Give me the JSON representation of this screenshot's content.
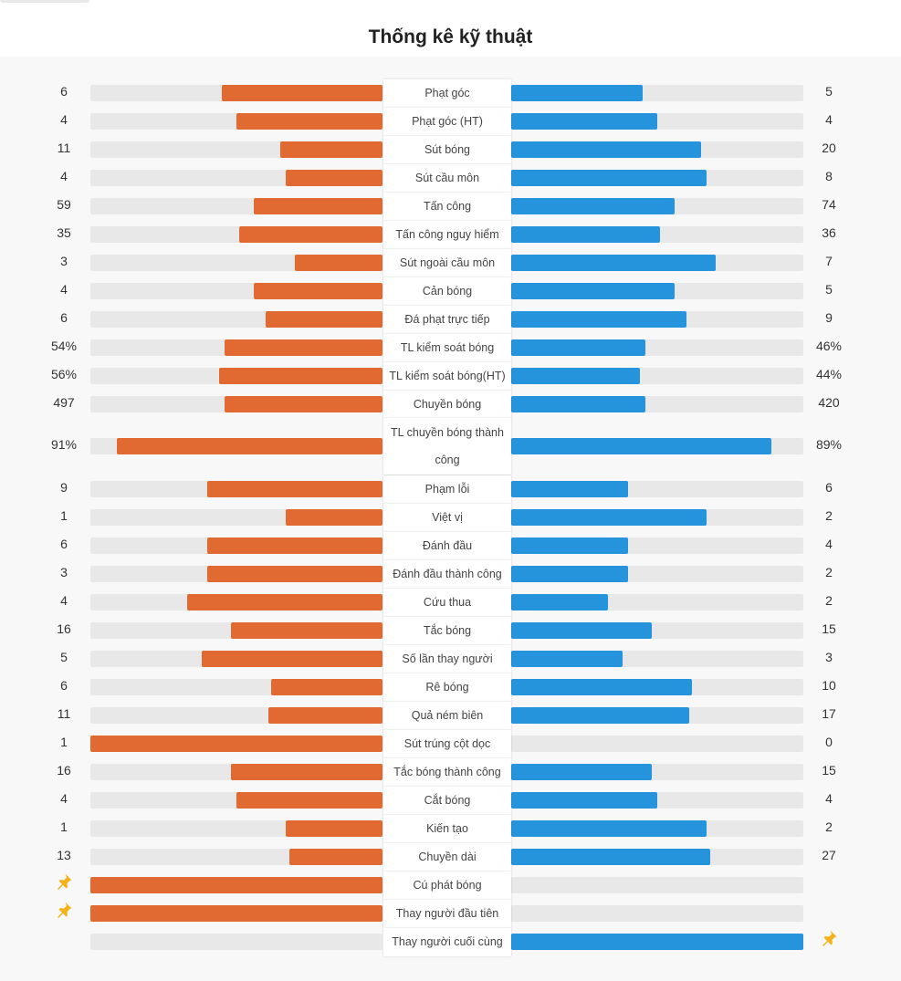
{
  "title": "Thống kê kỹ thuật",
  "colors": {
    "home": "#e06a31",
    "away": "#2594dd",
    "track": "#e8e8e8",
    "pin": "#f3b21b"
  },
  "stats": [
    {
      "label": "Phạt góc",
      "left": "6",
      "right": "5",
      "left_share": 0.55,
      "right_share": 0.45
    },
    {
      "label": "Phạt góc (HT)",
      "left": "4",
      "right": "4",
      "left_share": 0.5,
      "right_share": 0.5
    },
    {
      "label": "Sút bóng",
      "left": "11",
      "right": "20",
      "left_share": 0.35,
      "right_share": 0.65
    },
    {
      "label": "Sút cầu môn",
      "left": "4",
      "right": "8",
      "left_share": 0.33,
      "right_share": 0.67
    },
    {
      "label": "Tấn công",
      "left": "59",
      "right": "74",
      "left_share": 0.44,
      "right_share": 0.56
    },
    {
      "label": "Tấn công nguy hiểm",
      "left": "35",
      "right": "36",
      "left_share": 0.49,
      "right_share": 0.51
    },
    {
      "label": "Sút ngoài cầu môn",
      "left": "3",
      "right": "7",
      "left_share": 0.3,
      "right_share": 0.7
    },
    {
      "label": "Cản bóng",
      "left": "4",
      "right": "5",
      "left_share": 0.44,
      "right_share": 0.56
    },
    {
      "label": "Đá phạt trực tiếp",
      "left": "6",
      "right": "9",
      "left_share": 0.4,
      "right_share": 0.6
    },
    {
      "label": "TL kiểm soát bóng",
      "left": "54%",
      "right": "46%",
      "left_share": 0.54,
      "right_share": 0.46
    },
    {
      "label": "TL kiểm soát bóng(HT)",
      "left": "56%",
      "right": "44%",
      "left_share": 0.56,
      "right_share": 0.44
    },
    {
      "label": "Chuyền bóng",
      "left": "497",
      "right": "420",
      "left_share": 0.54,
      "right_share": 0.46
    },
    {
      "label": "TL chuyền bóng thành công",
      "left": "91%",
      "right": "89%",
      "left_share": 0.91,
      "right_share": 0.89,
      "tall": true
    },
    {
      "label": "Phạm lỗi",
      "left": "9",
      "right": "6",
      "left_share": 0.6,
      "right_share": 0.4
    },
    {
      "label": "Việt vị",
      "left": "1",
      "right": "2",
      "left_share": 0.33,
      "right_share": 0.67
    },
    {
      "label": "Đánh đầu",
      "left": "6",
      "right": "4",
      "left_share": 0.6,
      "right_share": 0.4
    },
    {
      "label": "Đánh đầu thành công",
      "left": "3",
      "right": "2",
      "left_share": 0.6,
      "right_share": 0.4
    },
    {
      "label": "Cứu thua",
      "left": "4",
      "right": "2",
      "left_share": 0.67,
      "right_share": 0.33
    },
    {
      "label": "Tắc bóng",
      "left": "16",
      "right": "15",
      "left_share": 0.52,
      "right_share": 0.48
    },
    {
      "label": "Số lần thay người",
      "left": "5",
      "right": "3",
      "left_share": 0.62,
      "right_share": 0.38
    },
    {
      "label": "Rê bóng",
      "left": "6",
      "right": "10",
      "left_share": 0.38,
      "right_share": 0.62
    },
    {
      "label": "Quả ném biên",
      "left": "11",
      "right": "17",
      "left_share": 0.39,
      "right_share": 0.61
    },
    {
      "label": "Sút trúng cột dọc",
      "left": "1",
      "right": "0",
      "left_share": 1.0,
      "right_share": 0.0
    },
    {
      "label": "Tắc bóng thành công",
      "left": "16",
      "right": "15",
      "left_share": 0.52,
      "right_share": 0.48
    },
    {
      "label": "Cắt bóng",
      "left": "4",
      "right": "4",
      "left_share": 0.5,
      "right_share": 0.5
    },
    {
      "label": "Kiến tạo",
      "left": "1",
      "right": "2",
      "left_share": 0.33,
      "right_share": 0.67
    },
    {
      "label": "Chuyền dài",
      "left": "13",
      "right": "27",
      "left_share": 0.32,
      "right_share": 0.68
    },
    {
      "label": "Cú phát bóng",
      "left": "",
      "right": "",
      "left_share": 1.0,
      "right_share": 0.0,
      "pin": "left"
    },
    {
      "label": "Thay người đầu tiên",
      "left": "",
      "right": "",
      "left_share": 1.0,
      "right_share": 0.0,
      "pin": "left"
    },
    {
      "label": "Thay người cuối cùng",
      "left": "",
      "right": "",
      "left_share": 0.0,
      "right_share": 1.0,
      "pin": "right"
    }
  ]
}
